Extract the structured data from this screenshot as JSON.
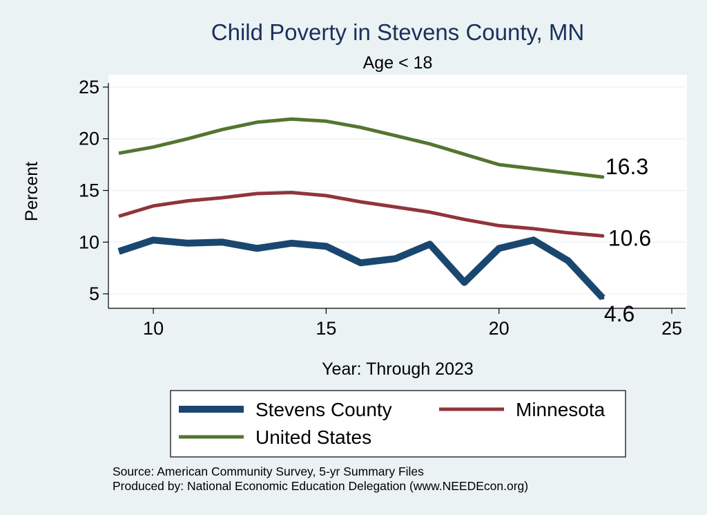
{
  "chart_data": {
    "type": "line",
    "title": "Child Poverty in Stevens County, MN",
    "subtitle": "Age < 18",
    "xlabel": "Year: Through 2023",
    "ylabel": "Percent",
    "xlim": [
      8.7,
      25.4
    ],
    "ylim": [
      3.6,
      26.2
    ],
    "xticks": [
      10,
      15,
      20,
      25
    ],
    "yticks": [
      5,
      10,
      15,
      20,
      25
    ],
    "x": [
      9,
      10,
      11,
      12,
      13,
      14,
      15,
      16,
      17,
      18,
      19,
      20,
      21,
      22,
      23
    ],
    "series": [
      {
        "key": "stevens",
        "name": "Stevens County",
        "color": "#1a476f",
        "values": [
          9.1,
          10.2,
          9.9,
          10.0,
          9.4,
          9.9,
          9.6,
          8.0,
          8.4,
          9.8,
          6.1,
          9.4,
          10.2,
          8.2,
          4.6
        ],
        "end_label": "4.6"
      },
      {
        "key": "minnesota",
        "name": "Minnesota",
        "color": "#90353b",
        "values": [
          12.5,
          13.5,
          14.0,
          14.3,
          14.7,
          14.8,
          14.5,
          13.9,
          13.4,
          12.9,
          12.2,
          11.6,
          11.3,
          10.9,
          10.6
        ],
        "end_label": "10.6"
      },
      {
        "key": "us",
        "name": "United States",
        "color": "#55752f",
        "values": [
          18.6,
          19.2,
          20.0,
          20.9,
          21.6,
          21.9,
          21.7,
          21.1,
          20.3,
          19.5,
          18.5,
          17.5,
          17.1,
          16.7,
          16.3
        ],
        "end_label": "16.3"
      }
    ],
    "legend": [
      {
        "key": "stevens",
        "label": "Stevens County"
      },
      {
        "key": "minnesota",
        "label": "Minnesota"
      },
      {
        "key": "us",
        "label": "United States"
      }
    ]
  },
  "notes": {
    "source": "Source: American Community Survey, 5-yr Summary Files",
    "produced": "Produced by: National Economic Education Delegation (www.NEEDEcon.org)"
  },
  "colors": {
    "background": "#eaf2f3",
    "plot_background": "#ffffff",
    "title": "#1a2f5c",
    "grid": "#e9f0f1"
  }
}
